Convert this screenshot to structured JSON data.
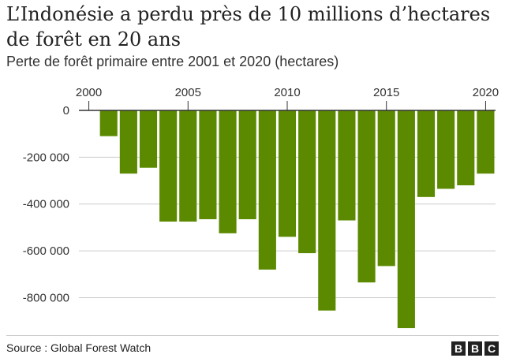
{
  "header": {
    "title": "L’Indonésie a perdu près de 10 millions d’hectares de forêt en 20 ans",
    "subtitle": "Perte de forêt primaire entre 2001 et 2020 (hectares)"
  },
  "footer": {
    "source": "Source : Global Forest Watch",
    "logo": [
      "B",
      "B",
      "C"
    ]
  },
  "colors": {
    "bar": "#5b8a00",
    "grid": "#cccccc",
    "axis": "#333333"
  },
  "chart_data": {
    "type": "bar",
    "x": [
      2001,
      2002,
      2003,
      2004,
      2005,
      2006,
      2007,
      2008,
      2009,
      2010,
      2011,
      2012,
      2013,
      2014,
      2015,
      2016,
      2017,
      2018,
      2019,
      2020
    ],
    "values": [
      -110000,
      -270000,
      -245000,
      -475000,
      -475000,
      -465000,
      -525000,
      -465000,
      -680000,
      -540000,
      -610000,
      -855000,
      -470000,
      -735000,
      -665000,
      -930000,
      -370000,
      -335000,
      -320000,
      -270000
    ],
    "xticks": [
      2000,
      2005,
      2010,
      2015,
      2020
    ],
    "xtick_labels": [
      "2000",
      "2005",
      "2010",
      "2015",
      "2020"
    ],
    "yticks": [
      0,
      -200000,
      -400000,
      -600000,
      -800000
    ],
    "ytick_labels": [
      "0",
      "-200 000",
      "-400 000",
      "-600 000",
      "-800 000"
    ],
    "xlim": [
      1999.5,
      2020.5
    ],
    "ylim": [
      -950000,
      0
    ],
    "xlabel": "",
    "ylabel": "",
    "grid": true,
    "title": "L’Indonésie a perdu près de 10 millions d’hectares de forêt en 20 ans",
    "subtitle": "Perte de forêt primaire entre 2001 et 2020 (hectares)"
  }
}
